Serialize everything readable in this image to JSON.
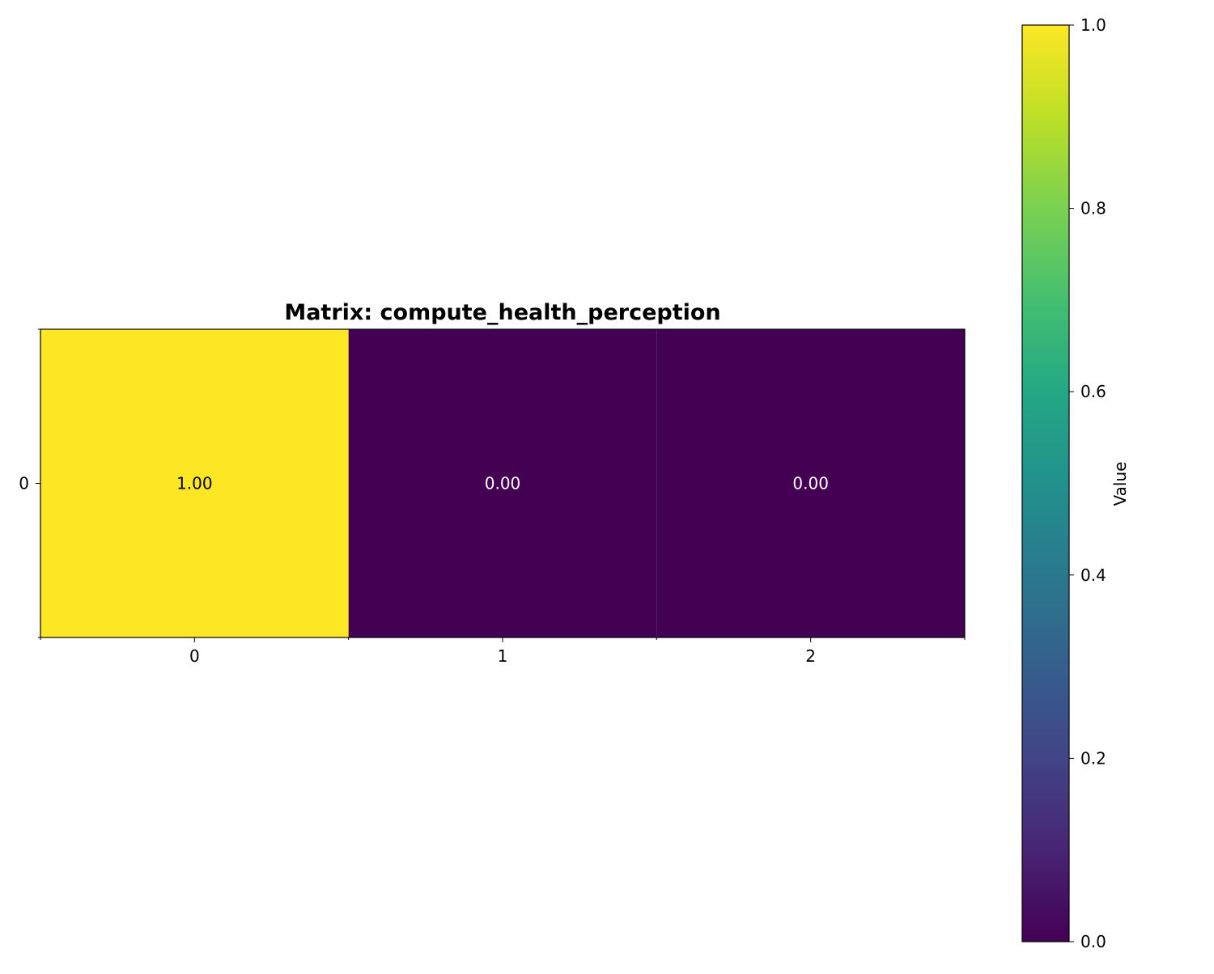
{
  "chart_data": {
    "type": "heatmap",
    "title": "Matrix: compute_health_perception",
    "rows": [
      "0"
    ],
    "columns": [
      "0",
      "1",
      "2"
    ],
    "values": [
      [
        1.0,
        0.0,
        0.0
      ]
    ],
    "cell_labels": [
      [
        "1.00",
        "0.00",
        "0.00"
      ]
    ],
    "colormap": "viridis",
    "colorbar": {
      "label": "Value",
      "range": [
        0.0,
        1.0
      ],
      "ticks": [
        0.0,
        0.2,
        0.4,
        0.6,
        0.8,
        1.0
      ],
      "tick_labels": [
        "0.0",
        "0.2",
        "0.4",
        "0.6",
        "0.8",
        "1.0"
      ],
      "placement": "right"
    },
    "colors": {
      "low": "#440154",
      "high": "#fde725",
      "label_on_low": "#ffffff",
      "label_on_high": "#000000"
    }
  }
}
